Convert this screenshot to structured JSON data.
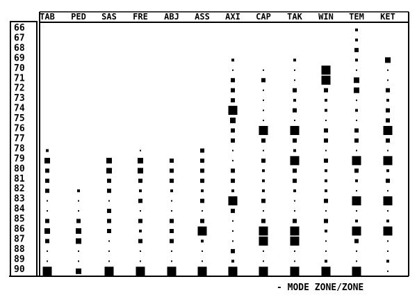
{
  "chart_data": {
    "type": "scatter",
    "title": "",
    "footer": "- MODE ZONE/ZONE",
    "columns": [
      "TAB",
      "PED",
      "SAS",
      "FRE",
      "ABJ",
      "ASS",
      "AXI",
      "CAP",
      "TAK",
      "WIN",
      "TEM",
      "KET"
    ],
    "rows": [
      66,
      67,
      68,
      69,
      70,
      71,
      72,
      73,
      74,
      75,
      76,
      77,
      78,
      79,
      80,
      81,
      82,
      83,
      84,
      85,
      86,
      87,
      88,
      89,
      90
    ],
    "mark_shape": "square",
    "size_levels": "1 (smallest dot) to 5 (largest square)",
    "series": [
      {
        "column": "TAB",
        "levels": {
          "78": 2,
          "79": 4,
          "80": 3,
          "81": 3,
          "82": 3,
          "83": 1,
          "84": 1,
          "85": 3,
          "86": 4,
          "87": 3,
          "88": 1,
          "89": 1,
          "90": 5
        }
      },
      {
        "column": "PED",
        "levels": {
          "82": 2,
          "83": 1,
          "84": 1,
          "85": 3,
          "86": 4,
          "87": 4,
          "88": 1,
          "89": 1,
          "90": 4
        }
      },
      {
        "column": "SAS",
        "levels": {
          "79": 4,
          "80": 4,
          "81": 3,
          "82": 3,
          "83": 1,
          "84": 3,
          "85": 3,
          "86": 3,
          "87": 1,
          "88": 1,
          "89": 1,
          "90": 5
        }
      },
      {
        "column": "FRE",
        "levels": {
          "78": 1,
          "79": 4,
          "80": 4,
          "81": 3,
          "82": 2,
          "83": 3,
          "84": 1,
          "85": 3,
          "86": 2,
          "87": 3,
          "88": 1,
          "89": 1,
          "90": 5
        }
      },
      {
        "column": "ABJ",
        "levels": {
          "79": 3,
          "80": 3,
          "81": 3,
          "82": 2,
          "83": 1,
          "84": 1,
          "85": 3,
          "86": 3,
          "87": 3,
          "88": 1,
          "89": 1,
          "90": 5
        }
      },
      {
        "column": "ASS",
        "levels": {
          "78": 3,
          "79": 3,
          "80": 3,
          "81": 3,
          "82": 2,
          "83": 3,
          "84": 1,
          "85": 3,
          "86": 5,
          "87": 2,
          "88": 1,
          "89": 1,
          "90": 5
        }
      },
      {
        "column": "AXI",
        "levels": {
          "69": 2,
          "70": 1,
          "71": 3,
          "72": 3,
          "73": 3,
          "74": 5,
          "75": 4,
          "76": 3,
          "77": 3,
          "78": 1,
          "79": 1,
          "80": 3,
          "81": 3,
          "82": 2,
          "83": 5,
          "84": 3,
          "85": 1,
          "86": 1,
          "87": 1,
          "88": 3,
          "89": 2,
          "90": 5
        }
      },
      {
        "column": "CAP",
        "levels": {
          "70": 1,
          "71": 3,
          "72": 1,
          "73": 1,
          "74": 1,
          "75": 1,
          "76": 5,
          "77": 3,
          "78": 1,
          "79": 3,
          "80": 2,
          "81": 2,
          "82": 2,
          "83": 3,
          "84": 1,
          "85": 3,
          "86": 5,
          "87": 5,
          "88": 1,
          "89": 1,
          "90": 5
        }
      },
      {
        "column": "TAK",
        "levels": {
          "69": 2,
          "70": 1,
          "71": 1,
          "72": 3,
          "73": 2,
          "74": 3,
          "75": 1,
          "76": 5,
          "77": 3,
          "78": 2,
          "79": 5,
          "80": 3,
          "81": 3,
          "82": 2,
          "83": 1,
          "84": 1,
          "85": 3,
          "86": 5,
          "87": 5,
          "88": 1,
          "89": 1,
          "90": 5
        }
      },
      {
        "column": "WIN",
        "levels": {
          "70": 5,
          "71": 5,
          "72": 3,
          "73": 2,
          "74": 2,
          "75": 1,
          "76": 3,
          "77": 3,
          "78": 1,
          "79": 3,
          "80": 2,
          "81": 2,
          "82": 2,
          "83": 3,
          "84": 1,
          "85": 3,
          "86": 2,
          "87": 1,
          "88": 1,
          "89": 2,
          "90": 5
        }
      },
      {
        "column": "TEM",
        "levels": {
          "66": 2,
          "67": 2,
          "68": 3,
          "69": 2,
          "70": 1,
          "71": 4,
          "72": 4,
          "73": 1,
          "74": 2,
          "75": 1,
          "76": 3,
          "77": 3,
          "78": 1,
          "79": 5,
          "80": 3,
          "81": 2,
          "82": 1,
          "83": 5,
          "84": 1,
          "85": 2,
          "86": 5,
          "87": 3,
          "88": 1,
          "89": 1,
          "90": 5
        }
      },
      {
        "column": "KET",
        "levels": {
          "69": 4,
          "70": 1,
          "71": 1,
          "72": 3,
          "73": 2,
          "74": 3,
          "75": 3,
          "76": 5,
          "77": 3,
          "78": 1,
          "79": 5,
          "80": 2,
          "81": 3,
          "82": 1,
          "83": 5,
          "84": 1,
          "85": 2,
          "86": 5,
          "87": 1,
          "88": 1,
          "89": 2,
          "90": 1
        }
      }
    ]
  }
}
